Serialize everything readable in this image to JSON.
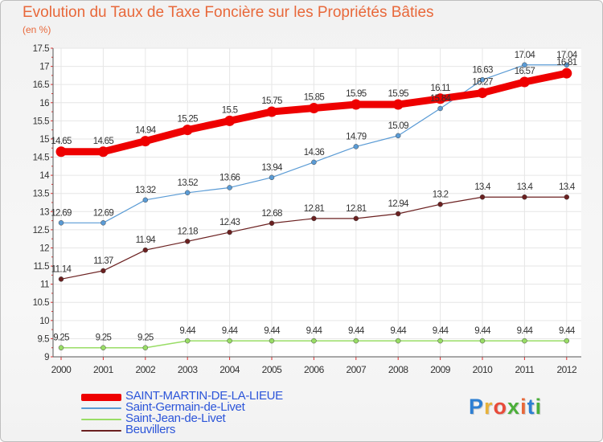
{
  "title": "Evolution du Taux de Taxe Foncière sur les Propriétés Bâties",
  "subtitle": "(en %)",
  "logo": {
    "text": "Proxiti",
    "letter_colors": [
      "#2d7fd3",
      "#e8b23a",
      "#e84b3a",
      "#4caf3a",
      "#e8683a",
      "#2d7fd3",
      "#4caf3a"
    ]
  },
  "colors": {
    "title": "#e8683a",
    "legend_text": "#2c55d9",
    "axis_text": "#333333",
    "grid": "#e6e6e6",
    "axis_ticks": "#e03030"
  },
  "chart_data": {
    "type": "line",
    "x": [
      2000,
      2001,
      2002,
      2003,
      2004,
      2005,
      2006,
      2007,
      2008,
      2009,
      2010,
      2011,
      2012
    ],
    "ylim": [
      9,
      17.5
    ],
    "yticks": [
      9,
      9.5,
      10,
      10.5,
      11,
      11.5,
      12,
      12.5,
      13,
      13.5,
      14,
      14.5,
      15,
      15.5,
      16,
      16.5,
      17,
      17.5
    ],
    "grid": true,
    "legend_position": "bottom-left",
    "series": [
      {
        "name": "SAINT-MARTIN-DE-LA-LIEUE",
        "color": "#ee0000",
        "values": [
          14.65,
          14.65,
          14.94,
          15.25,
          15.5,
          15.75,
          15.85,
          15.95,
          15.95,
          16.11,
          16.27,
          16.57,
          16.81
        ],
        "labels": [
          "14.65",
          "14.65",
          "14.94",
          "15.25",
          "15.5",
          "15.75",
          "15.85",
          "15.95",
          "15.95",
          "16.11",
          "16.27",
          "16.57",
          "16.81"
        ]
      },
      {
        "name": "Saint-Germain-de-Livet",
        "color": "#5a9bd5",
        "values": [
          12.69,
          12.69,
          13.32,
          13.52,
          13.66,
          13.94,
          14.36,
          14.79,
          15.09,
          15.84,
          16.63,
          17.04,
          17.04
        ],
        "labels": [
          "12.69",
          "12.69",
          "13.32",
          "13.52",
          "13.66",
          "13.94",
          "14.36",
          "14.79",
          "15.09",
          "15.84",
          "16.63",
          "17.04",
          "17.04"
        ]
      },
      {
        "name": "Saint-Jean-de-Livet",
        "color": "#99dd66",
        "values": [
          9.25,
          9.25,
          9.25,
          9.44,
          9.44,
          9.44,
          9.44,
          9.44,
          9.44,
          9.44,
          9.44,
          9.44,
          9.44
        ],
        "labels": [
          "9.25",
          "9.25",
          "9.25",
          "9.44",
          "9.44",
          "9.44",
          "9.44",
          "9.44",
          "9.44",
          "9.44",
          "9.44",
          "9.44",
          "9.44"
        ]
      },
      {
        "name": "Beuvillers",
        "color": "#6b2020",
        "values": [
          11.14,
          11.37,
          11.94,
          12.18,
          12.43,
          12.68,
          12.81,
          12.81,
          12.94,
          13.2,
          13.4,
          13.4,
          13.4
        ],
        "labels": [
          "11.14",
          "11.37",
          "11.94",
          "12.18",
          "12.43",
          "12.68",
          "12.81",
          "12.81",
          "12.94",
          "13.2",
          "13.4",
          "13.4",
          "13.4"
        ]
      }
    ]
  }
}
